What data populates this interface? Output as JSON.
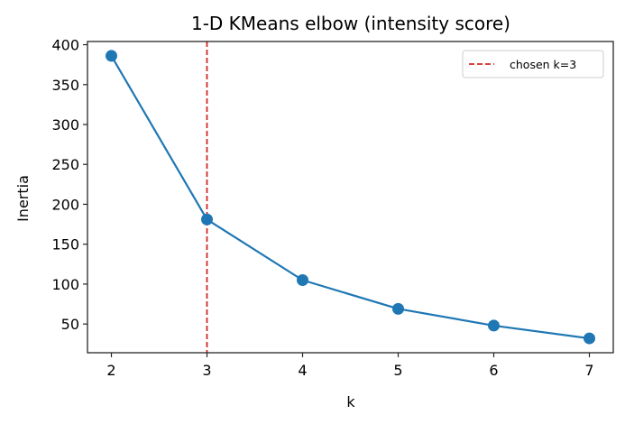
{
  "chart_data": {
    "type": "line",
    "title": "1-D KMeans elbow (intensity score)",
    "xlabel": "k",
    "ylabel": "Inertia",
    "x": [
      2,
      3,
      4,
      5,
      6,
      7
    ],
    "series": [
      {
        "name": "inertia",
        "values": [
          386,
          181,
          105,
          69,
          48,
          32
        ],
        "color": "#1f77b4",
        "marker": "circle"
      }
    ],
    "annotations": [
      {
        "type": "vline",
        "x": 3,
        "label": "chosen k=3",
        "color": "#d62728",
        "style": "dashed"
      }
    ],
    "xticks": [
      2,
      3,
      4,
      5,
      6,
      7
    ],
    "yticks": [
      50,
      100,
      150,
      200,
      250,
      300,
      350,
      400
    ],
    "xlim": [
      1.75,
      7.25
    ],
    "ylim": [
      14,
      404
    ],
    "grid": false,
    "legend": {
      "position": "upper right",
      "entries": [
        "chosen k=3"
      ]
    }
  },
  "colors": {
    "series": "#1f77b4",
    "vline": "#d62728",
    "axis": "#262626"
  }
}
